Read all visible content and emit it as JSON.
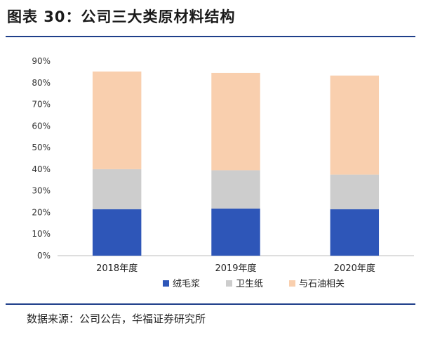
{
  "title": "图表 30：公司三大类原材料结构",
  "source": "数据来源：公司公告，华福证券研究所",
  "chart_data": {
    "type": "bar",
    "stacked": true,
    "categories": [
      "2018年度",
      "2019年度",
      "2020年度"
    ],
    "series": [
      {
        "name": "绒毛浆",
        "color": "#2e56b8",
        "values": [
          21.5,
          21.8,
          21.5
        ]
      },
      {
        "name": "卫生纸",
        "color": "#cdcdcd",
        "values": [
          18.5,
          17.7,
          16.0
        ]
      },
      {
        "name": "与石油相关",
        "color": "#f9cfae",
        "values": [
          45.2,
          45.0,
          45.8
        ]
      }
    ],
    "ylim": [
      0,
      90
    ],
    "yticks": [
      "0%",
      "10%",
      "20%",
      "30%",
      "40%",
      "50%",
      "60%",
      "70%",
      "80%",
      "90%"
    ],
    "grid": false,
    "legend": "bottom"
  }
}
